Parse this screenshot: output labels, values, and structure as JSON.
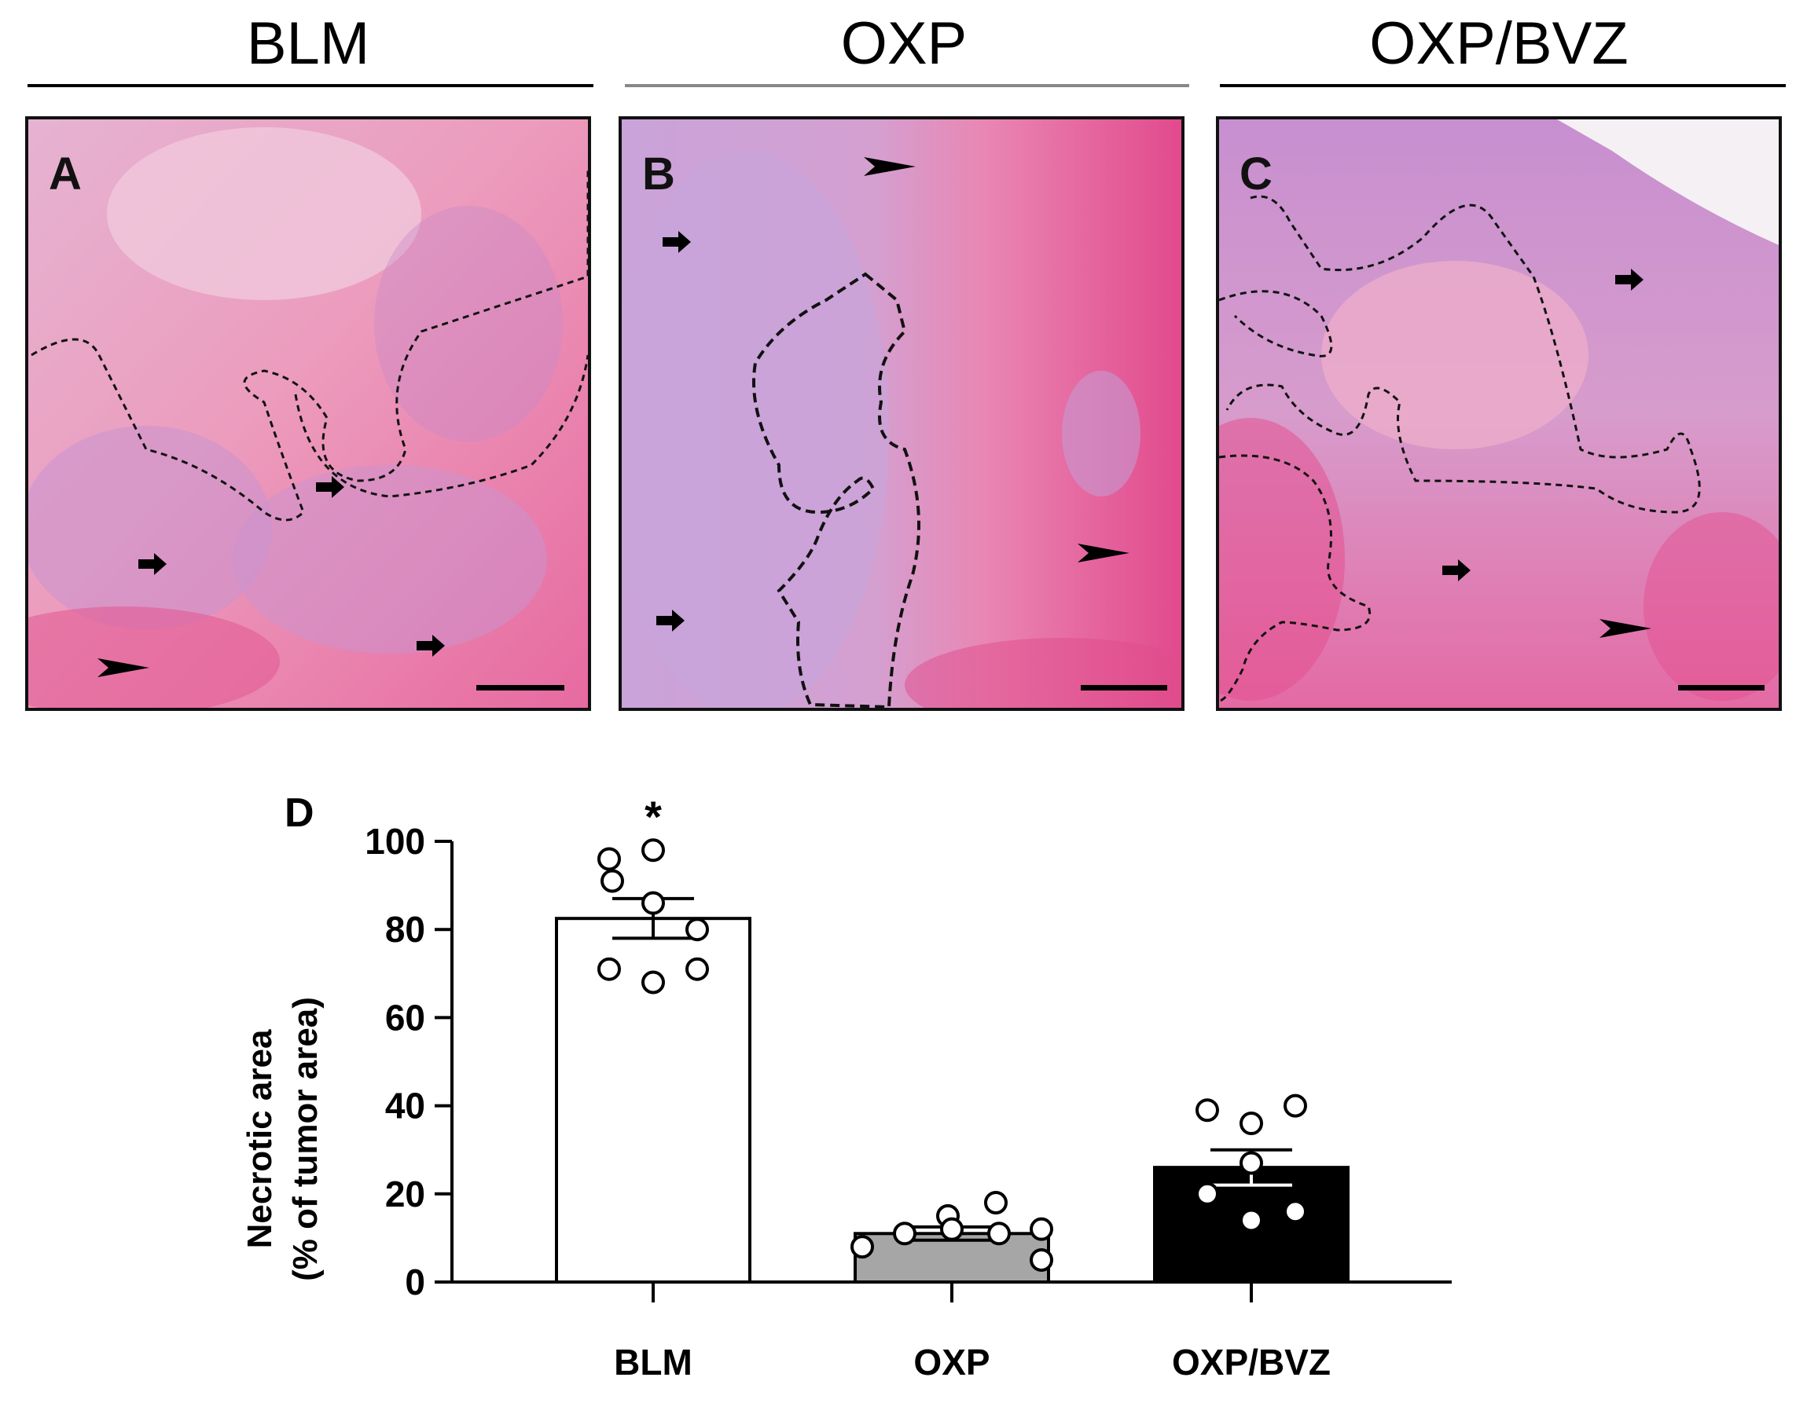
{
  "groups": [
    {
      "label": "BLM",
      "panel_letter": "A"
    },
    {
      "label": "OXP",
      "panel_letter": "B"
    },
    {
      "label": "OXP/BVZ",
      "panel_letter": "C"
    }
  ],
  "colors": {
    "tissue_pink": "#e8a0c4",
    "tissue_magenta": "#e0488c",
    "tissue_lilac": "#c89ad4",
    "bar_blm": "#ffffff",
    "bar_oxp": "#a6a6a6",
    "bar_oxpbvz": "#000000"
  },
  "chart_data": {
    "type": "bar",
    "panel_letter": "D",
    "categories": [
      "BLM",
      "OXP",
      "OXP/BVZ"
    ],
    "values": [
      82.5,
      11,
      26
    ],
    "sem": [
      4.5,
      1.5,
      4
    ],
    "points": [
      [
        96,
        98,
        91,
        86,
        80,
        71,
        68,
        71
      ],
      [
        8,
        11,
        15,
        12,
        18,
        11,
        12,
        5
      ],
      [
        39,
        36,
        40,
        27,
        20,
        14,
        16
      ]
    ],
    "annotations": [
      {
        "category": "BLM",
        "text": "*"
      }
    ],
    "ylabel_line1": "Necrotic area",
    "ylabel_line2": "(% of tumor area)",
    "ylim": [
      0,
      100
    ],
    "yticks": [
      "0",
      "20",
      "40",
      "60",
      "80",
      "100"
    ],
    "grid": false
  }
}
